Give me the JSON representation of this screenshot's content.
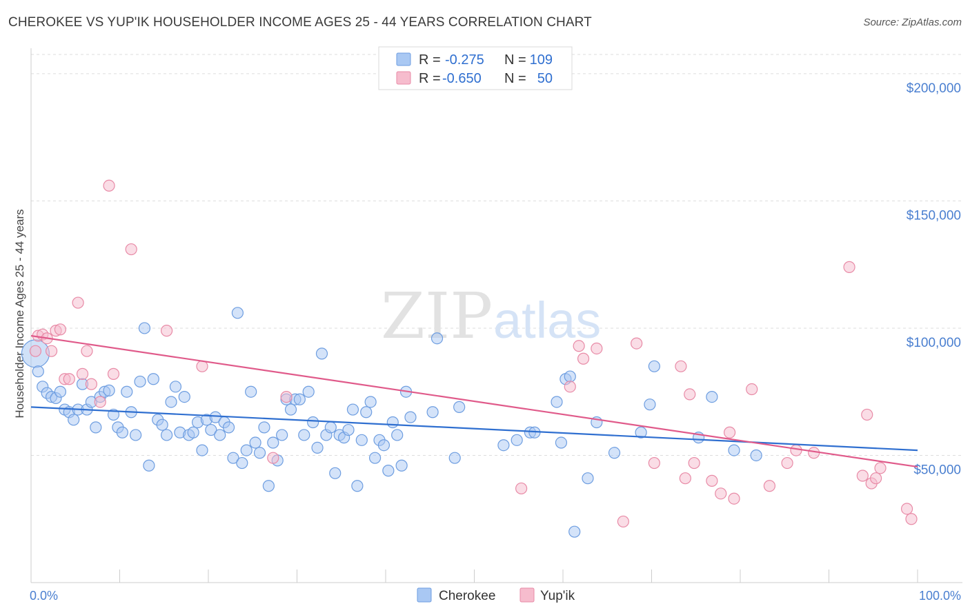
{
  "header": {
    "title": "CHEROKEE VS YUP'IK HOUSEHOLDER INCOME AGES 25 - 44 YEARS CORRELATION CHART",
    "source": "Source: ZipAtlas.com"
  },
  "watermark": {
    "zip": "ZIP",
    "atlas": "atlas"
  },
  "legend": {
    "r_label": "R =",
    "n_label": "N =",
    "rows": [
      {
        "r": "-0.275",
        "n": "109"
      },
      {
        "r": "-0.650",
        "n": "50"
      }
    ]
  },
  "colors": {
    "cherokee_fill": "#a9c8f3",
    "cherokee_stroke": "#6d9de0",
    "cherokee_line": "#2f6fd0",
    "yupik_fill": "#f6bccd",
    "yupik_stroke": "#e88aa6",
    "yupik_line": "#e05a8a",
    "tick_text": "#4a7fd0",
    "grid": "#dddddd"
  },
  "chart_data": {
    "type": "scatter",
    "ylabel": "Householder Income Ages 25 - 44 years",
    "xlim": [
      0,
      100
    ],
    "ylim": [
      0,
      210000
    ],
    "x_tick_labels": [
      "0.0%",
      "100.0%"
    ],
    "y_ticks": [
      {
        "value": 50000,
        "label": "$50,000"
      },
      {
        "value": 100000,
        "label": "$100,000"
      },
      {
        "value": 150000,
        "label": "$150,000"
      },
      {
        "value": 200000,
        "label": "$200,000"
      }
    ],
    "grid": true,
    "legend_position": "top-center",
    "series": [
      {
        "name": "Cherokee",
        "trend": {
          "x": [
            0,
            100
          ],
          "y": [
            69000,
            52000
          ]
        },
        "points": [
          [
            0.5,
            90000
          ],
          [
            0.8,
            83000
          ],
          [
            1.3,
            77000
          ],
          [
            1.8,
            74500
          ],
          [
            2.3,
            73000
          ],
          [
            2.8,
            72500
          ],
          [
            3.3,
            75000
          ],
          [
            3.8,
            68000
          ],
          [
            4.3,
            67000
          ],
          [
            4.8,
            64000
          ],
          [
            5.3,
            68000
          ],
          [
            5.8,
            78000
          ],
          [
            6.3,
            68000
          ],
          [
            6.8,
            71000
          ],
          [
            7.3,
            61000
          ],
          [
            7.8,
            73000
          ],
          [
            8.3,
            75000
          ],
          [
            8.8,
            75500
          ],
          [
            9.3,
            66000
          ],
          [
            9.8,
            61000
          ],
          [
            10.3,
            59000
          ],
          [
            10.8,
            75000
          ],
          [
            11.3,
            67000
          ],
          [
            11.8,
            58000
          ],
          [
            12.3,
            79000
          ],
          [
            12.8,
            100000
          ],
          [
            13.3,
            46000
          ],
          [
            13.8,
            80000
          ],
          [
            14.3,
            64000
          ],
          [
            14.8,
            62000
          ],
          [
            15.3,
            58000
          ],
          [
            15.8,
            71000
          ],
          [
            16.3,
            77000
          ],
          [
            16.8,
            59000
          ],
          [
            17.3,
            73000
          ],
          [
            17.8,
            58000
          ],
          [
            18.3,
            59000
          ],
          [
            18.8,
            63000
          ],
          [
            19.3,
            52000
          ],
          [
            19.8,
            64000
          ],
          [
            20.3,
            60000
          ],
          [
            20.8,
            65000
          ],
          [
            21.3,
            58000
          ],
          [
            21.8,
            63000
          ],
          [
            22.3,
            61000
          ],
          [
            22.8,
            49000
          ],
          [
            23.3,
            106000
          ],
          [
            23.8,
            47000
          ],
          [
            24.3,
            52000
          ],
          [
            24.8,
            75000
          ],
          [
            25.3,
            55000
          ],
          [
            25.8,
            51000
          ],
          [
            26.3,
            61000
          ],
          [
            26.8,
            38000
          ],
          [
            27.3,
            55000
          ],
          [
            27.8,
            48000
          ],
          [
            28.3,
            58000
          ],
          [
            28.8,
            72000
          ],
          [
            29.3,
            68000
          ],
          [
            29.8,
            72000
          ],
          [
            30.3,
            72000
          ],
          [
            30.8,
            58000
          ],
          [
            31.3,
            75000
          ],
          [
            31.8,
            63000
          ],
          [
            32.3,
            53000
          ],
          [
            32.8,
            90000
          ],
          [
            33.3,
            58000
          ],
          [
            33.8,
            61000
          ],
          [
            34.3,
            43000
          ],
          [
            34.8,
            58000
          ],
          [
            35.3,
            57000
          ],
          [
            35.8,
            60000
          ],
          [
            36.3,
            68000
          ],
          [
            36.8,
            38000
          ],
          [
            37.3,
            56000
          ],
          [
            37.8,
            67000
          ],
          [
            38.3,
            71000
          ],
          [
            38.8,
            49000
          ],
          [
            39.3,
            56000
          ],
          [
            39.8,
            54000
          ],
          [
            40.3,
            44000
          ],
          [
            40.8,
            63000
          ],
          [
            41.3,
            58000
          ],
          [
            41.8,
            46000
          ],
          [
            42.3,
            75000
          ],
          [
            42.8,
            65000
          ],
          [
            45.3,
            67000
          ],
          [
            47.8,
            49000
          ],
          [
            45.8,
            96000
          ],
          [
            48.3,
            69000
          ],
          [
            53.3,
            54000
          ],
          [
            54.8,
            56000
          ],
          [
            56.3,
            59000
          ],
          [
            56.8,
            59000
          ],
          [
            59.3,
            71000
          ],
          [
            59.8,
            55000
          ],
          [
            60.3,
            80000
          ],
          [
            60.8,
            81000
          ],
          [
            61.3,
            20000
          ],
          [
            62.8,
            41000
          ],
          [
            63.8,
            63000
          ],
          [
            65.8,
            51000
          ],
          [
            68.8,
            59000
          ],
          [
            69.8,
            70000
          ],
          [
            70.3,
            85000
          ],
          [
            75.3,
            57000
          ],
          [
            76.8,
            73000
          ],
          [
            79.3,
            52000
          ],
          [
            81.8,
            50000
          ]
        ]
      },
      {
        "name": "Yup'ik",
        "trend": {
          "x": [
            0,
            100
          ],
          "y": [
            97000,
            45500
          ]
        },
        "points": [
          [
            0.5,
            91000
          ],
          [
            0.8,
            97000
          ],
          [
            1.3,
            97500
          ],
          [
            1.8,
            96000
          ],
          [
            2.3,
            91000
          ],
          [
            2.8,
            99000
          ],
          [
            3.3,
            99500
          ],
          [
            3.8,
            80000
          ],
          [
            4.3,
            80000
          ],
          [
            5.3,
            110000
          ],
          [
            5.8,
            82000
          ],
          [
            6.3,
            91000
          ],
          [
            6.8,
            78000
          ],
          [
            7.8,
            71000
          ],
          [
            8.8,
            156000
          ],
          [
            9.3,
            82000
          ],
          [
            11.3,
            131000
          ],
          [
            15.3,
            99000
          ],
          [
            19.3,
            85000
          ],
          [
            27.3,
            49000
          ],
          [
            28.8,
            73000
          ],
          [
            55.3,
            37000
          ],
          [
            60.8,
            77000
          ],
          [
            61.8,
            93000
          ],
          [
            62.3,
            88000
          ],
          [
            63.8,
            92000
          ],
          [
            66.8,
            24000
          ],
          [
            68.3,
            94000
          ],
          [
            70.3,
            47000
          ],
          [
            73.3,
            85000
          ],
          [
            73.8,
            41000
          ],
          [
            74.3,
            74000
          ],
          [
            74.8,
            47000
          ],
          [
            76.8,
            40000
          ],
          [
            77.8,
            35000
          ],
          [
            78.8,
            59000
          ],
          [
            79.3,
            33000
          ],
          [
            81.3,
            76000
          ],
          [
            83.3,
            38000
          ],
          [
            85.3,
            47000
          ],
          [
            86.3,
            52000
          ],
          [
            88.3,
            51000
          ],
          [
            92.3,
            124000
          ],
          [
            93.8,
            42000
          ],
          [
            94.3,
            66000
          ],
          [
            94.8,
            39000
          ],
          [
            95.3,
            41000
          ],
          [
            95.8,
            45000
          ],
          [
            98.8,
            29000
          ],
          [
            99.3,
            25000
          ]
        ]
      }
    ]
  }
}
